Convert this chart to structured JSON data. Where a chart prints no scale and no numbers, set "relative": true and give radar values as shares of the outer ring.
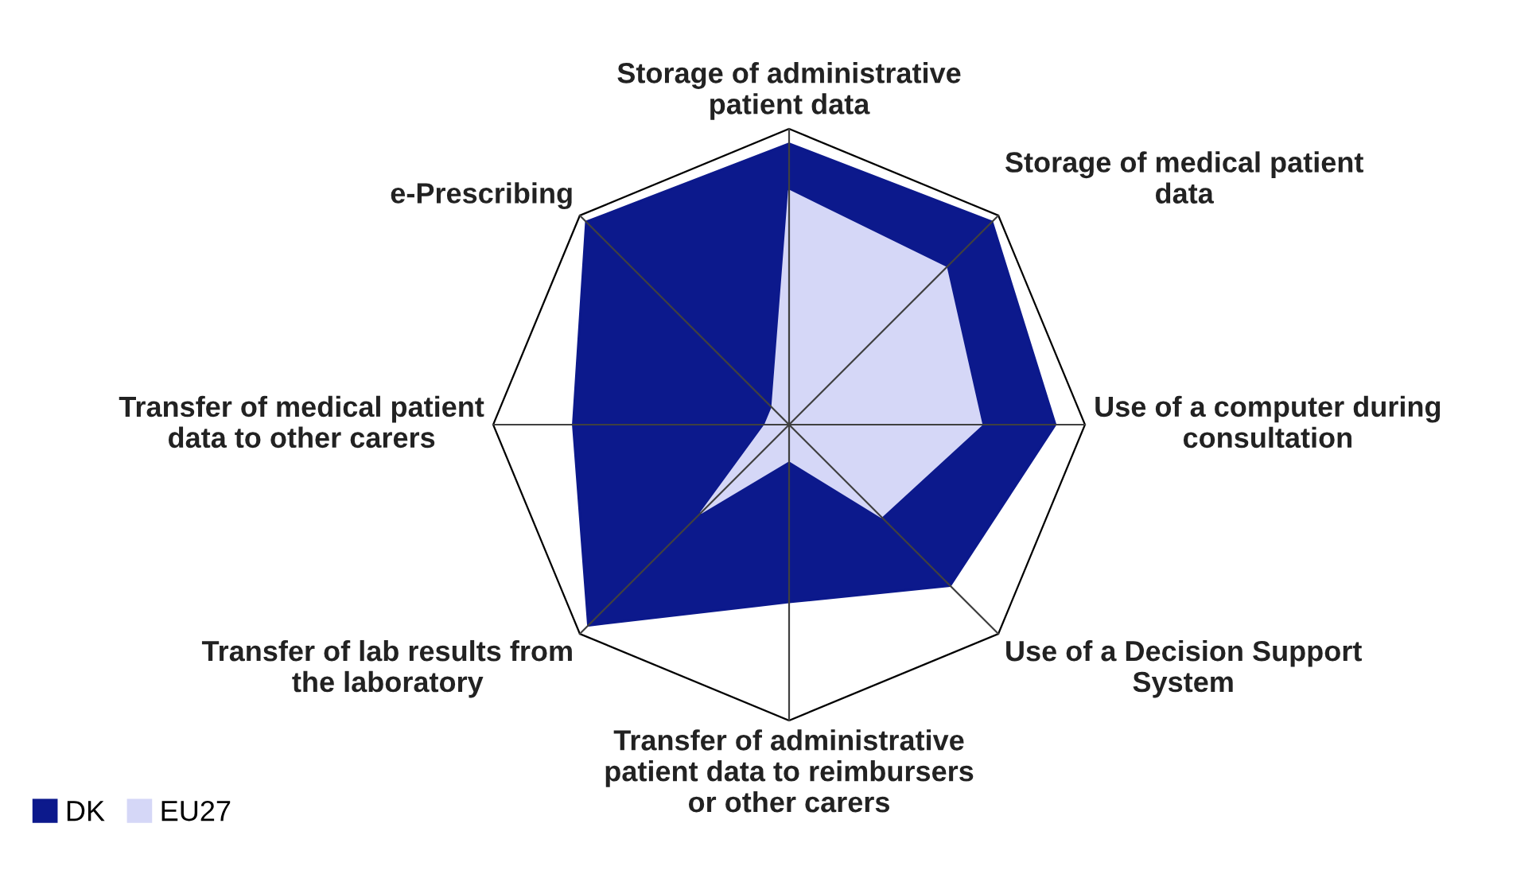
{
  "chart_data": {
    "type": "radar",
    "relative": true,
    "categories": [
      "Storage of administrative patient data",
      "Storage of medical patient data",
      "Use of a computer during consultation",
      "Use of a Decision Support System",
      "Transfer of administrative patient data to reimbursers or other carers",
      "Transfer of lab results from the laboratory",
      "Transfer of medical patient data to other carers",
      "e-Prescribing"
    ],
    "series": [
      {
        "name": "DK",
        "color": "#0c198c",
        "values": [
          0.95,
          0.97,
          0.9,
          0.77,
          0.6,
          0.96,
          0.73,
          0.97
        ]
      },
      {
        "name": "EU27",
        "color": "#d5d7f7",
        "values": [
          0.79,
          0.75,
          0.65,
          0.44,
          0.12,
          0.42,
          0.08,
          0.08
        ]
      }
    ],
    "legend": "bottom left",
    "grid": true
  }
}
